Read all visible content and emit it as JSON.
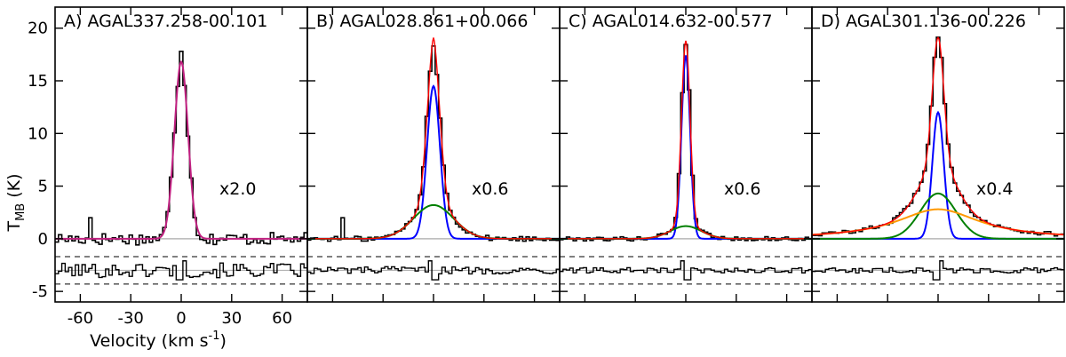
{
  "chart_data": {
    "type": "line",
    "ylabel_main": "T",
    "ylabel_sub": "MB",
    "ylabel_unit": "(K)",
    "xlabel": "Velocity (km s",
    "xlabel_exp": "-1",
    "xlabel_close": ")",
    "xlim": [
      -75,
      75
    ],
    "ylim": [
      -6,
      22
    ],
    "xticks": [
      -60,
      -30,
      0,
      30,
      60
    ],
    "xtick_labels": [
      "-60",
      "-30",
      "0",
      "30",
      "60"
    ],
    "yticks": [
      -5,
      0,
      5,
      10,
      15,
      20
    ],
    "ytick_labels": [
      "-5",
      "0",
      "5",
      "10",
      "15",
      "20"
    ],
    "residual_offset": -3,
    "residual_band": [
      -1.3,
      1.3
    ],
    "colors": {
      "total": "#ff0000",
      "blue": "#0000ff",
      "green": "#008000",
      "orange": "#ff9900",
      "single": "#c02080",
      "data": "#000000",
      "zero": "#aaaaaa"
    },
    "panels": [
      {
        "title": "A) AGAL337.258-00.101",
        "scale_label": "x2.0",
        "components": [
          {
            "color": "single",
            "amp": 16.8,
            "center": 0,
            "fwhm": 9.5,
            "shape": "gauss"
          }
        ],
        "total": false,
        "peak_obs": 17.8,
        "noise": 0.6,
        "resid_noise": 0.7,
        "spikes": [
          {
            "v": -54,
            "t": 2.0
          },
          {
            "v": 33,
            "t": 1.0
          },
          {
            "v": 19,
            "t": 0.6
          }
        ]
      },
      {
        "title": "B) AGAL028.861+00.066",
        "scale_label": "x0.6",
        "components": [
          {
            "color": "blue",
            "amp": 14.5,
            "center": 0,
            "fwhm": 9,
            "shape": "gauss"
          },
          {
            "color": "green",
            "amp": 3.2,
            "center": 0,
            "fwhm": 28,
            "shape": "gauss"
          }
        ],
        "total": true,
        "peak_obs": 18.3,
        "noise": 0.25,
        "resid_noise": 0.35,
        "spikes": [
          {
            "v": -54,
            "t": 2.0
          }
        ]
      },
      {
        "title": "C) AGAL014.632-00.577",
        "scale_label": "x0.6",
        "components": [
          {
            "color": "blue",
            "amp": 17.4,
            "center": 0,
            "fwhm": 6,
            "shape": "gauss"
          },
          {
            "color": "green",
            "amp": 1.2,
            "center": 0,
            "fwhm": 22,
            "shape": "gauss"
          }
        ],
        "total": true,
        "peak_obs": 18.0,
        "noise": 0.2,
        "resid_noise": 0.25,
        "spikes": []
      },
      {
        "title": "D) AGAL301.136-00.226",
        "scale_label": "x0.4",
        "components": [
          {
            "color": "blue",
            "amp": 12.0,
            "center": 0,
            "fwhm": 8,
            "shape": "gauss"
          },
          {
            "color": "green",
            "amp": 4.3,
            "center": 0,
            "fwhm": 25,
            "shape": "gauss"
          },
          {
            "color": "orange",
            "amp": 2.8,
            "center": 0,
            "fwhm": 60,
            "shape": "lorentz"
          }
        ],
        "total": true,
        "peak_obs": 18.0,
        "noise": 0.2,
        "resid_noise": 0.25,
        "spikes": []
      }
    ]
  }
}
